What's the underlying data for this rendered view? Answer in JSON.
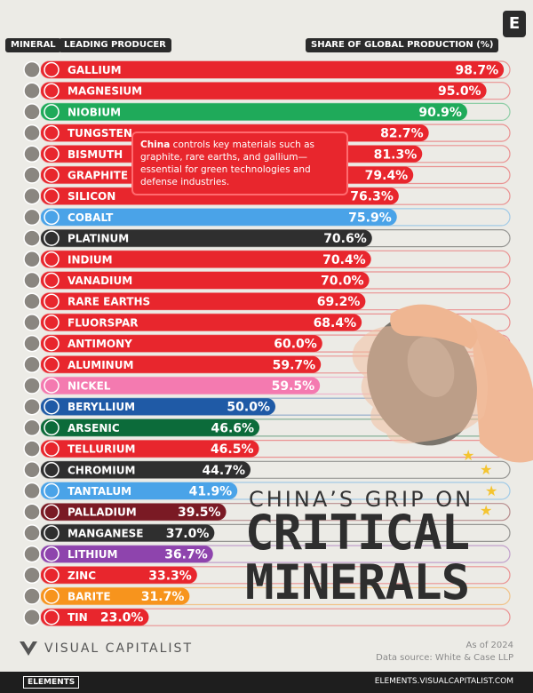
{
  "header": {
    "mineral": "MINERAL",
    "producer": "LEADING PRODUCER",
    "share": "SHARE OF GLOBAL PRODUCTION (%)"
  },
  "logo_letter": "E",
  "note": {
    "bold": "China",
    "text": " controls key materials such as graphite, rare earths, and gallium—essential for green technologies and defense industries."
  },
  "title": {
    "line1": "CHINA’S GRIP ON",
    "line2": "CRITICAL",
    "line3": "MINERALS"
  },
  "brand": "VISUAL CAPITALIST",
  "asof": {
    "date": "As of 2024",
    "source": "Data source: White & Case LLP"
  },
  "footer": {
    "left": "ELEMENTS",
    "right": "ELEMENTS.VISUALCAPITALIST.COM"
  },
  "colors": {
    "china": "#e8262d",
    "brazil": "#1faa5a",
    "drc": "#4aa3e8",
    "south_africa": "#2f2f2f",
    "indonesia": "#f47ab0",
    "usa": "#1f5aa6",
    "peru": "#0c6b3a",
    "russia": "#7a1a24",
    "australia": "#8e44ad",
    "india": "#f7941d"
  },
  "chart_data": {
    "type": "bar",
    "xlim": [
      0,
      100
    ],
    "categories": [
      "GALLIUM",
      "MAGNESIUM",
      "NIOBIUM",
      "TUNGSTEN",
      "BISMUTH",
      "GRAPHITE",
      "SILICON",
      "COBALT",
      "PLATINUM",
      "INDIUM",
      "VANADIUM",
      "RARE EARTHS",
      "FLUORSPAR",
      "ANTIMONY",
      "ALUMINUM",
      "NICKEL",
      "BERYLLIUM",
      "ARSENIC",
      "TELLURIUM",
      "CHROMIUM",
      "TANTALUM",
      "PALLADIUM",
      "MANGANESE",
      "LITHIUM",
      "ZINC",
      "BARITE",
      "TIN"
    ],
    "values": [
      98.7,
      95.0,
      90.9,
      82.7,
      81.3,
      79.4,
      76.3,
      75.9,
      70.6,
      70.4,
      70.0,
      69.2,
      68.4,
      60.0,
      59.7,
      59.5,
      50.0,
      46.6,
      46.5,
      44.7,
      41.9,
      39.5,
      37.0,
      36.7,
      33.3,
      31.7,
      23.0
    ],
    "labels": [
      "98.7%",
      "95.0%",
      "90.9%",
      "82.7%",
      "81.3%",
      "79.4%",
      "76.3%",
      "75.9%",
      "70.6%",
      "70.4%",
      "70.0%",
      "69.2%",
      "68.4%",
      "60.0%",
      "59.7%",
      "59.5%",
      "50.0%",
      "46.6%",
      "46.5%",
      "44.7%",
      "41.9%",
      "39.5%",
      "37.0%",
      "36.7%",
      "33.3%",
      "31.7%",
      "23.0%"
    ],
    "producers": [
      "china",
      "china",
      "brazil",
      "china",
      "china",
      "china",
      "china",
      "drc",
      "south_africa",
      "china",
      "china",
      "china",
      "china",
      "china",
      "china",
      "indonesia",
      "usa",
      "peru",
      "china",
      "south_africa",
      "drc",
      "russia",
      "south_africa",
      "australia",
      "china",
      "india",
      "china"
    ]
  }
}
